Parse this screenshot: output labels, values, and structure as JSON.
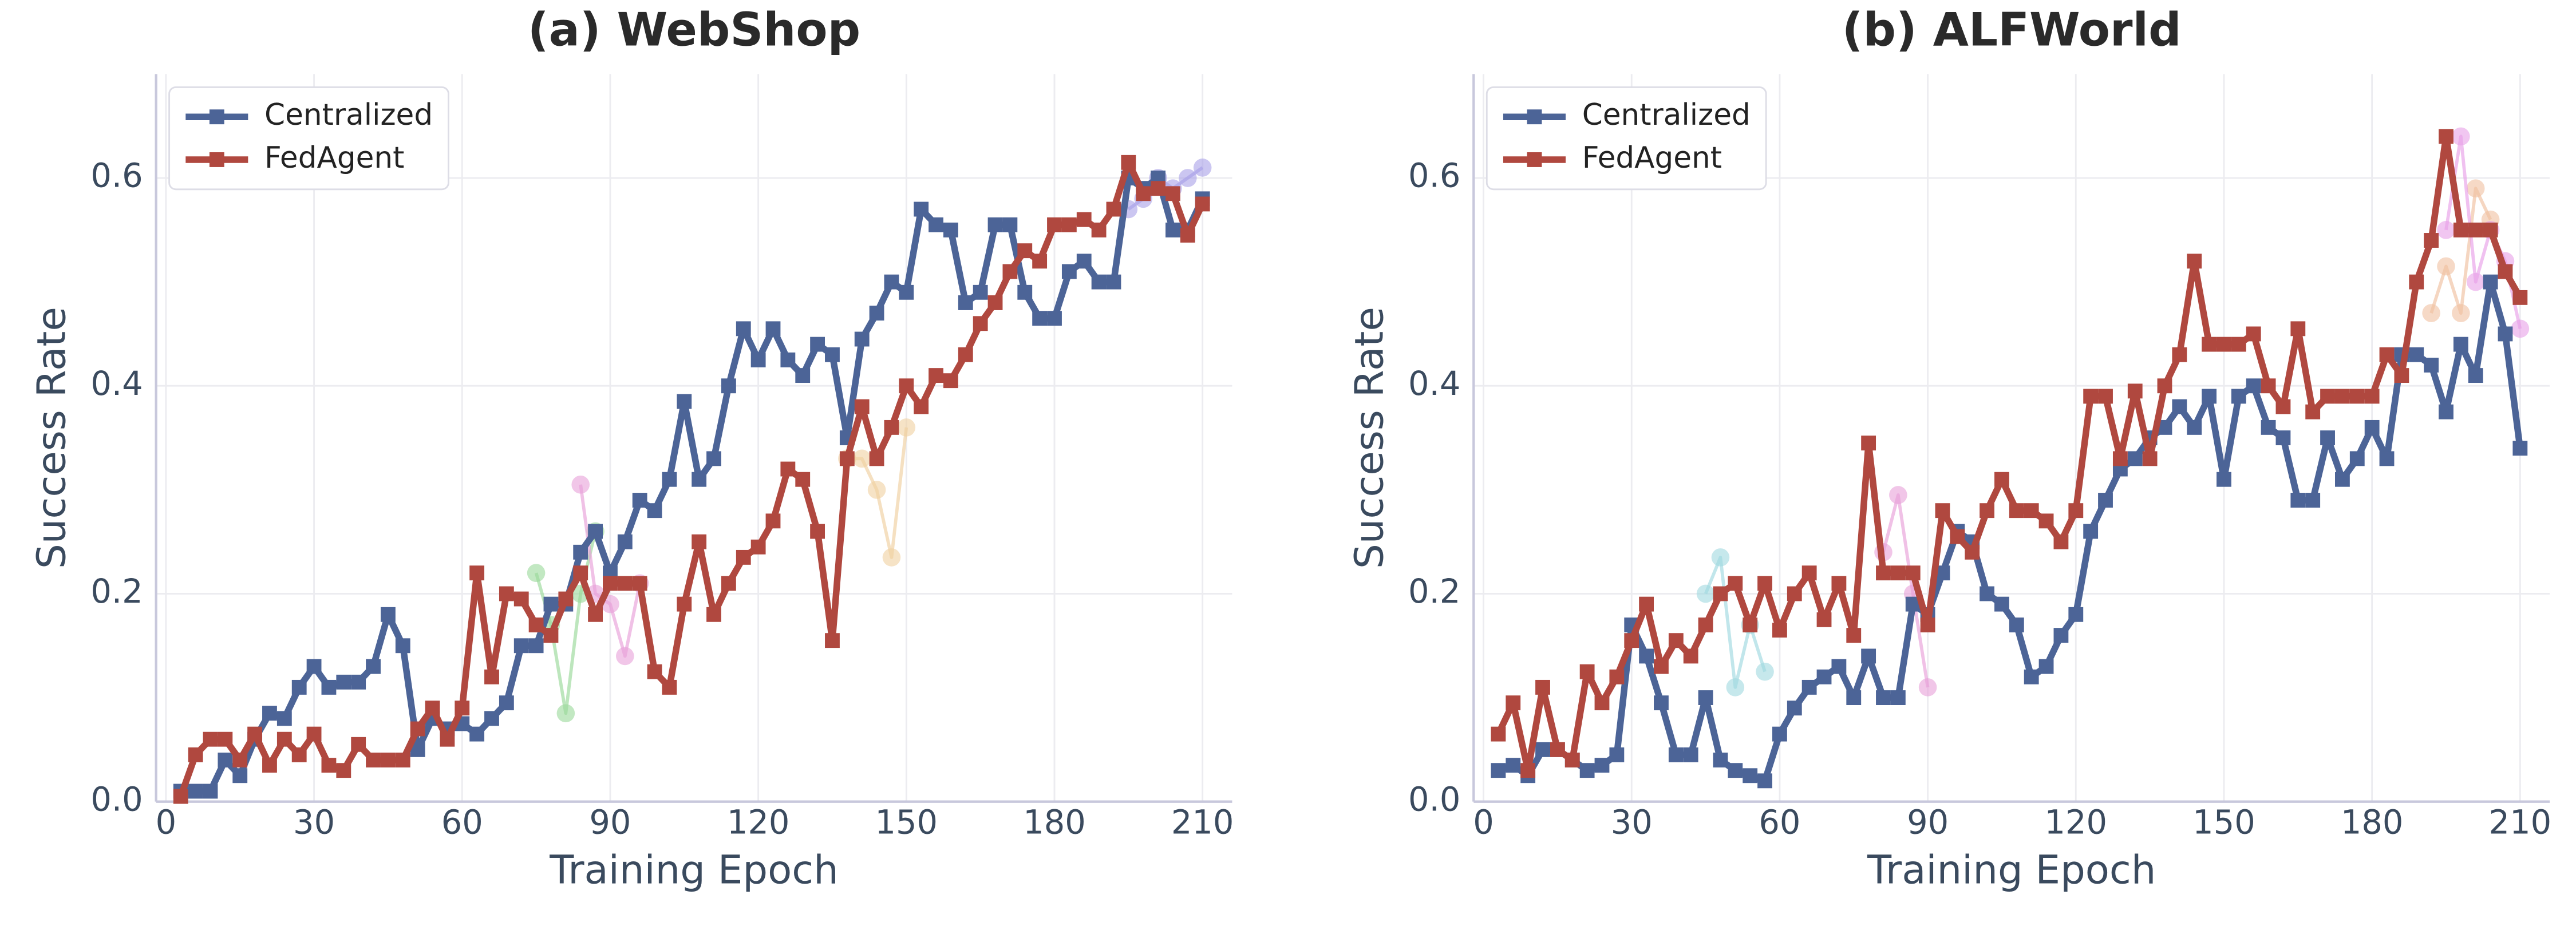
{
  "chart_data": [
    {
      "type": "line",
      "title": "(a) WebShop",
      "xlabel": "Training Epoch",
      "ylabel": "Success Rate",
      "xlim": [
        -2,
        216
      ],
      "ylim": [
        0,
        0.7
      ],
      "xticks": [
        0,
        30,
        60,
        90,
        120,
        150,
        180,
        210
      ],
      "yticks": [
        {
          "value": 0,
          "label": "0.0"
        },
        0.2,
        0.4,
        0.6
      ],
      "grid": true,
      "legend": "upper left",
      "series": [
        {
          "color": "#9ad99a",
          "x": [
            75,
            78,
            81,
            84,
            87
          ],
          "values": [
            0.22,
            0.17,
            0.085,
            0.2,
            0.26
          ]
        },
        {
          "color": "#e8a0d8",
          "x": [
            84,
            87,
            90,
            93,
            96
          ],
          "values": [
            0.305,
            0.2,
            0.19,
            0.14,
            0.21
          ]
        },
        {
          "color": "#f0d0a0",
          "x": [
            138,
            141,
            144,
            147,
            150
          ],
          "values": [
            0.33,
            0.33,
            0.3,
            0.235,
            0.36
          ]
        },
        {
          "color": "#a8a0e8",
          "x": [
            195,
            198,
            201,
            204,
            207,
            210
          ],
          "values": [
            0.57,
            0.58,
            0.6,
            0.59,
            0.6,
            0.61
          ]
        },
        {
          "name": "Centralized",
          "color": "#4c6497",
          "x": [
            3,
            6,
            9,
            12,
            15,
            18,
            21,
            24,
            27,
            30,
            33,
            36,
            39,
            42,
            45,
            48,
            51,
            54,
            57,
            60,
            63,
            66,
            69,
            72,
            75,
            78,
            81,
            84,
            87,
            90,
            93,
            96,
            99,
            102,
            105,
            108,
            111,
            114,
            117,
            120,
            123,
            126,
            129,
            132,
            135,
            138,
            141,
            144,
            147,
            150,
            153,
            156,
            159,
            162,
            165,
            168,
            171,
            174,
            177,
            180,
            183,
            186,
            189,
            192,
            195,
            198,
            201,
            204,
            207,
            210
          ],
          "values": [
            0.01,
            0.01,
            0.01,
            0.04,
            0.025,
            0.06,
            0.085,
            0.08,
            0.11,
            0.13,
            0.11,
            0.115,
            0.115,
            0.13,
            0.18,
            0.15,
            0.05,
            0.08,
            0.07,
            0.075,
            0.065,
            0.08,
            0.095,
            0.15,
            0.15,
            0.19,
            0.19,
            0.24,
            0.26,
            0.22,
            0.25,
            0.29,
            0.28,
            0.31,
            0.385,
            0.31,
            0.33,
            0.4,
            0.455,
            0.425,
            0.455,
            0.425,
            0.41,
            0.44,
            0.43,
            0.35,
            0.445,
            0.47,
            0.5,
            0.49,
            0.57,
            0.555,
            0.55,
            0.48,
            0.49,
            0.555,
            0.555,
            0.49,
            0.465,
            0.465,
            0.51,
            0.52,
            0.5,
            0.5,
            0.6,
            0.59,
            0.6,
            0.55,
            0.55,
            0.58
          ]
        },
        {
          "name": "FedAgent",
          "color": "#b0483f",
          "x": [
            3,
            6,
            9,
            12,
            15,
            18,
            21,
            24,
            27,
            30,
            33,
            36,
            39,
            42,
            45,
            48,
            51,
            54,
            57,
            60,
            63,
            66,
            69,
            72,
            75,
            78,
            81,
            84,
            87,
            90,
            93,
            96,
            99,
            102,
            105,
            108,
            111,
            114,
            117,
            120,
            123,
            126,
            129,
            132,
            135,
            138,
            141,
            144,
            147,
            150,
            153,
            156,
            159,
            162,
            165,
            168,
            171,
            174,
            177,
            180,
            183,
            186,
            189,
            192,
            195,
            198,
            201,
            204,
            207,
            210
          ],
          "values": [
            0.005,
            0.045,
            0.06,
            0.06,
            0.04,
            0.065,
            0.035,
            0.06,
            0.045,
            0.065,
            0.035,
            0.03,
            0.055,
            0.04,
            0.04,
            0.04,
            0.07,
            0.09,
            0.06,
            0.09,
            0.22,
            0.12,
            0.2,
            0.195,
            0.17,
            0.16,
            0.195,
            0.22,
            0.18,
            0.21,
            0.21,
            0.21,
            0.125,
            0.11,
            0.19,
            0.25,
            0.18,
            0.21,
            0.235,
            0.245,
            0.27,
            0.32,
            0.31,
            0.26,
            0.155,
            0.33,
            0.38,
            0.33,
            0.36,
            0.4,
            0.38,
            0.41,
            0.405,
            0.43,
            0.46,
            0.48,
            0.51,
            0.53,
            0.52,
            0.555,
            0.555,
            0.56,
            0.55,
            0.57,
            0.615,
            0.585,
            0.59,
            0.585,
            0.545,
            0.575
          ]
        }
      ]
    },
    {
      "type": "line",
      "title": "(b) ALFWorld",
      "xlabel": "Training Epoch",
      "ylabel": "Success Rate",
      "xlim": [
        -2,
        216
      ],
      "ylim": [
        0,
        0.7
      ],
      "xticks": [
        0,
        30,
        60,
        90,
        120,
        150,
        180,
        210
      ],
      "yticks": [
        {
          "value": 0,
          "label": "0.0"
        },
        0.2,
        0.4,
        0.6
      ],
      "grid": true,
      "legend": "upper left",
      "series": [
        {
          "color": "#a0d8e0",
          "x": [
            45,
            48,
            51,
            54,
            57
          ],
          "values": [
            0.2,
            0.235,
            0.11,
            0.17,
            0.125
          ]
        },
        {
          "color": "#e8a0d8",
          "x": [
            81,
            84,
            87,
            90
          ],
          "values": [
            0.24,
            0.295,
            0.2,
            0.11
          ]
        },
        {
          "color": "#f0c0a0",
          "x": [
            192,
            195,
            198,
            201,
            204
          ],
          "values": [
            0.47,
            0.515,
            0.47,
            0.59,
            0.56
          ]
        },
        {
          "color": "#e8a0e8",
          "x": [
            195,
            198,
            201,
            204,
            207,
            210
          ],
          "values": [
            0.55,
            0.64,
            0.5,
            0.55,
            0.52,
            0.455
          ]
        },
        {
          "name": "Centralized",
          "color": "#4c6497",
          "x": [
            3,
            6,
            9,
            12,
            15,
            18,
            21,
            24,
            27,
            30,
            33,
            36,
            39,
            42,
            45,
            48,
            51,
            54,
            57,
            60,
            63,
            66,
            69,
            72,
            75,
            78,
            81,
            84,
            87,
            90,
            93,
            96,
            99,
            102,
            105,
            108,
            111,
            114,
            117,
            120,
            123,
            126,
            129,
            132,
            135,
            138,
            141,
            144,
            147,
            150,
            153,
            156,
            159,
            162,
            165,
            168,
            171,
            174,
            177,
            180,
            183,
            186,
            189,
            192,
            195,
            198,
            201,
            204,
            207,
            210
          ],
          "values": [
            0.03,
            0.035,
            0.025,
            0.05,
            0.05,
            0.04,
            0.03,
            0.035,
            0.045,
            0.17,
            0.14,
            0.095,
            0.045,
            0.045,
            0.1,
            0.04,
            0.03,
            0.025,
            0.02,
            0.065,
            0.09,
            0.11,
            0.12,
            0.13,
            0.1,
            0.14,
            0.1,
            0.1,
            0.19,
            0.18,
            0.22,
            0.26,
            0.25,
            0.2,
            0.19,
            0.17,
            0.12,
            0.13,
            0.16,
            0.18,
            0.26,
            0.29,
            0.32,
            0.33,
            0.35,
            0.36,
            0.38,
            0.36,
            0.39,
            0.31,
            0.39,
            0.4,
            0.36,
            0.35,
            0.29,
            0.29,
            0.35,
            0.31,
            0.33,
            0.36,
            0.33,
            0.43,
            0.43,
            0.42,
            0.375,
            0.44,
            0.41,
            0.5,
            0.45,
            0.34
          ]
        },
        {
          "name": "FedAgent",
          "color": "#b0483f",
          "x": [
            3,
            6,
            9,
            12,
            15,
            18,
            21,
            24,
            27,
            30,
            33,
            36,
            39,
            42,
            45,
            48,
            51,
            54,
            57,
            60,
            63,
            66,
            69,
            72,
            75,
            78,
            81,
            84,
            87,
            90,
            93,
            96,
            99,
            102,
            105,
            108,
            111,
            114,
            117,
            120,
            123,
            126,
            129,
            132,
            135,
            138,
            141,
            144,
            147,
            150,
            153,
            156,
            159,
            162,
            165,
            168,
            171,
            174,
            177,
            180,
            183,
            186,
            189,
            192,
            195,
            198,
            201,
            204,
            207,
            210
          ],
          "values": [
            0.065,
            0.095,
            0.03,
            0.11,
            0.05,
            0.04,
            0.125,
            0.095,
            0.12,
            0.155,
            0.19,
            0.13,
            0.155,
            0.14,
            0.17,
            0.2,
            0.21,
            0.17,
            0.21,
            0.165,
            0.2,
            0.22,
            0.175,
            0.21,
            0.16,
            0.345,
            0.22,
            0.22,
            0.22,
            0.17,
            0.28,
            0.255,
            0.24,
            0.28,
            0.31,
            0.28,
            0.28,
            0.27,
            0.25,
            0.28,
            0.39,
            0.39,
            0.33,
            0.395,
            0.33,
            0.4,
            0.43,
            0.52,
            0.44,
            0.44,
            0.44,
            0.45,
            0.4,
            0.38,
            0.455,
            0.375,
            0.39,
            0.39,
            0.39,
            0.39,
            0.43,
            0.41,
            0.5,
            0.54,
            0.64,
            0.55,
            0.55,
            0.55,
            0.51,
            0.485
          ]
        }
      ]
    }
  ]
}
